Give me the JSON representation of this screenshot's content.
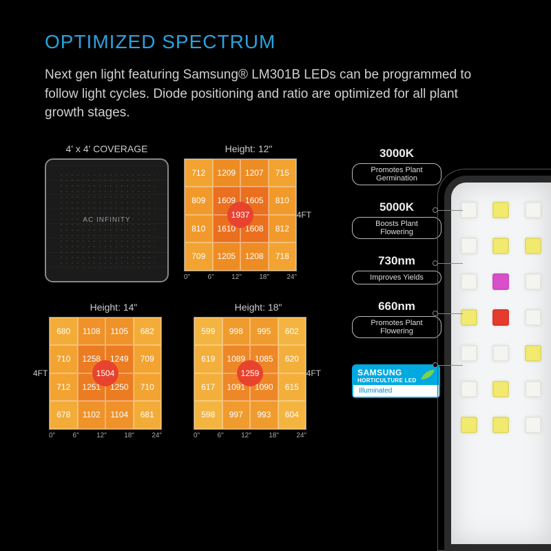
{
  "title": "OPTIMIZED SPECTRUM",
  "description": "Next gen light featuring Samsung® LM301B LEDs can be programmed to follow light cycles. Diode positioning and ratio are optimized for all plant growth stages.",
  "coverage": {
    "title": "4' x 4' COVERAGE",
    "brand": "AC INFINITY"
  },
  "heatmaps": [
    {
      "title": "Height: 12\"",
      "side_label": "4FT",
      "side": "right",
      "center_value": "1937",
      "center_color": "#e8432e",
      "cells": [
        {
          "v": "712",
          "c": "#f2a331"
        },
        {
          "v": "1209",
          "c": "#ee8c24"
        },
        {
          "v": "1207",
          "c": "#ee8c24"
        },
        {
          "v": "715",
          "c": "#f2a331"
        },
        {
          "v": "809",
          "c": "#f19a2b"
        },
        {
          "v": "1609",
          "c": "#ea6f1e"
        },
        {
          "v": "1605",
          "c": "#ea6f1e"
        },
        {
          "v": "810",
          "c": "#f19a2b"
        },
        {
          "v": "810",
          "c": "#f19a2b"
        },
        {
          "v": "1610",
          "c": "#ea6f1e"
        },
        {
          "v": "1608",
          "c": "#ea6f1e"
        },
        {
          "v": "812",
          "c": "#f19a2b"
        },
        {
          "v": "709",
          "c": "#f2a331"
        },
        {
          "v": "1205",
          "c": "#ee8c24"
        },
        {
          "v": "1208",
          "c": "#ee8c24"
        },
        {
          "v": "718",
          "c": "#f2a331"
        }
      ],
      "xaxis": [
        "0\"",
        "6\"",
        "12\"",
        "18\"",
        "24\""
      ]
    },
    {
      "title": "Height: 14\"",
      "side_label": "4FT",
      "side": "left",
      "center_value": "1504",
      "center_color": "#e8432e",
      "cells": [
        {
          "v": "680",
          "c": "#f3ac38"
        },
        {
          "v": "1108",
          "c": "#ef922a"
        },
        {
          "v": "1105",
          "c": "#ef922a"
        },
        {
          "v": "682",
          "c": "#f3ac38"
        },
        {
          "v": "710",
          "c": "#f2a331"
        },
        {
          "v": "1258",
          "c": "#eb7c22"
        },
        {
          "v": "1249",
          "c": "#eb7c22"
        },
        {
          "v": "709",
          "c": "#f2a331"
        },
        {
          "v": "712",
          "c": "#f2a331"
        },
        {
          "v": "1251",
          "c": "#eb7c22"
        },
        {
          "v": "1250",
          "c": "#eb7c22"
        },
        {
          "v": "710",
          "c": "#f2a331"
        },
        {
          "v": "678",
          "c": "#f3ac38"
        },
        {
          "v": "1102",
          "c": "#ef922a"
        },
        {
          "v": "1104",
          "c": "#ef922a"
        },
        {
          "v": "681",
          "c": "#f3ac38"
        }
      ],
      "xaxis": [
        "0\"",
        "6\"",
        "12\"",
        "18\"",
        "24\""
      ]
    },
    {
      "title": "Height: 18\"",
      "side_label": "4FT",
      "side": "right",
      "center_value": "1259",
      "center_color": "#e8432e",
      "cells": [
        {
          "v": "599",
          "c": "#f4b440"
        },
        {
          "v": "998",
          "c": "#f09b2d"
        },
        {
          "v": "995",
          "c": "#f09b2d"
        },
        {
          "v": "602",
          "c": "#f4b440"
        },
        {
          "v": "619",
          "c": "#f3af3b"
        },
        {
          "v": "1089",
          "c": "#ed8727"
        },
        {
          "v": "1085",
          "c": "#ed8727"
        },
        {
          "v": "620",
          "c": "#f3af3b"
        },
        {
          "v": "617",
          "c": "#f3af3b"
        },
        {
          "v": "1091",
          "c": "#ed8727"
        },
        {
          "v": "1090",
          "c": "#ed8727"
        },
        {
          "v": "615",
          "c": "#f3af3b"
        },
        {
          "v": "598",
          "c": "#f4b440"
        },
        {
          "v": "997",
          "c": "#f09b2d"
        },
        {
          "v": "993",
          "c": "#f09b2d"
        },
        {
          "v": "604",
          "c": "#f4b440"
        }
      ],
      "xaxis": [
        "0\"",
        "6\"",
        "12\"",
        "18\"",
        "24\""
      ]
    }
  ],
  "spectrum": [
    {
      "k": "3000K",
      "desc": "Promotes Plant Germination"
    },
    {
      "k": "5000K",
      "desc": "Boosts Plant Flowering"
    },
    {
      "k": "730nm",
      "desc": "Improves Yields"
    },
    {
      "k": "660nm",
      "desc": "Promotes Plant Flowering"
    }
  ],
  "samsung": {
    "brand": "SAMSUNG",
    "sub": "HORTICULTURE LED",
    "bottom": "Illuminated"
  },
  "led_colors": [
    "#f5f5f0",
    "#f2ea6e",
    "#f5f5f0",
    "#f5f5f0",
    "#f2ea6e",
    "#f2ea6e",
    "#f5f5f0",
    "#d94fc9",
    "#f5f5f0",
    "#f2ea6e",
    "#e63a2e",
    "#f5f5f0",
    "#f5f5f0",
    "#f5f5f0",
    "#f2ea6e",
    "#f5f5f0",
    "#f2ea6e",
    "#f5f5f0",
    "#f2ea6e",
    "#f2ea6e",
    "#f5f5f0"
  ],
  "colors": {
    "title": "#2aa3df",
    "bg": "#000000"
  }
}
